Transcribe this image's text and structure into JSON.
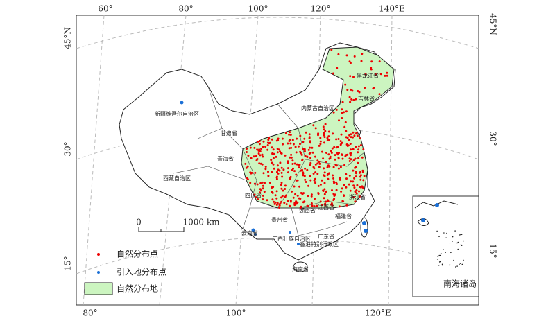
{
  "graticule_labels": {
    "top": [
      "60°",
      "80°",
      "100°",
      "120°",
      "140°E"
    ],
    "bottom": [
      "80°",
      "100°",
      "120°E"
    ],
    "left": [
      "45°N",
      "30°",
      "15°"
    ],
    "right": [
      "45°N",
      "30°",
      "15°"
    ]
  },
  "province_labels": [
    "新疆维吾尔自治区",
    "内蒙古自治区",
    "黑龙江省",
    "吉林省",
    "甘肃省",
    "青海省",
    "西藏自治区",
    "四川省",
    "云南省",
    "贵州省",
    "湖南省",
    "广西壮族自治区",
    "广东省",
    "福建省",
    "浙江省",
    "江西省",
    "香港特别行政区",
    "海南省"
  ],
  "scale_bar": {
    "start": "0",
    "end": "1000 km"
  },
  "legend": [
    "自然分布点",
    "引入地分布点",
    "自然分布地"
  ],
  "inset_label": "南海诸岛"
}
